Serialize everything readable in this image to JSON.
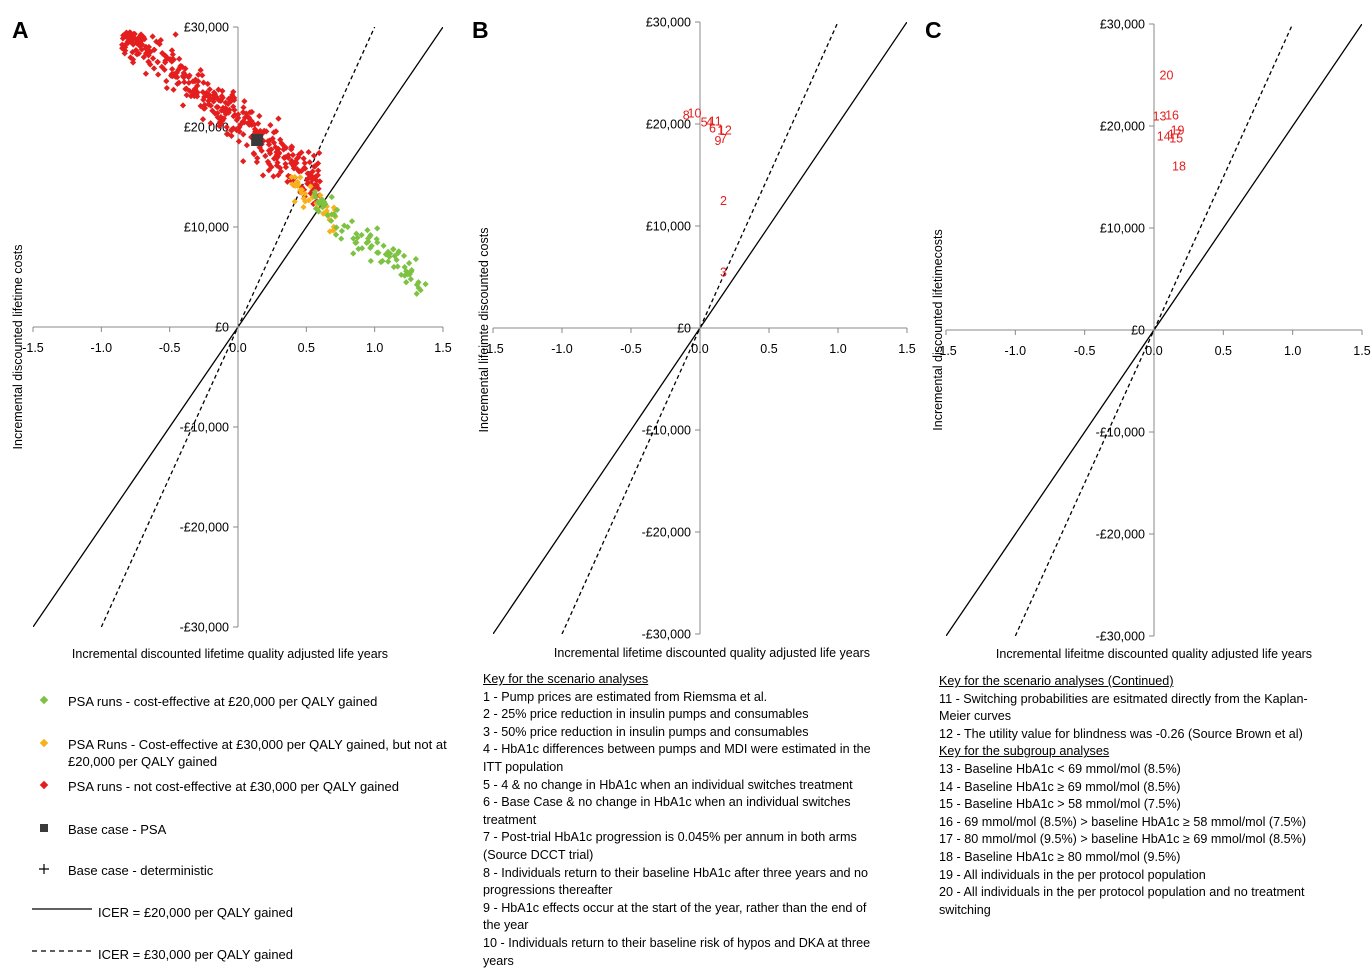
{
  "panels": [
    {
      "letter": "A",
      "xlabel": "Incremental discounted lifetime quality adjusted life years",
      "ylabel": "Incremental discounted lifetime costs"
    },
    {
      "letter": "B",
      "xlabel": "Incremental lifetime discounted quality adjusted life years",
      "ylabel": "Incremental lifeimte discounted costs"
    },
    {
      "letter": "C",
      "xlabel": "Incremental lifeitme discounted quality adjusted life years",
      "ylabel": "Incremental discounted lifetimecosts"
    }
  ],
  "legend": {
    "green": "PSA runs - cost-effective at £20,000 per QALY gained",
    "orange": "PSA Runs - Cost-effective at £30,000 per QALY gained, but not at £20,000 per QALY gained",
    "red": "PSA runs - not cost-effective at £30,000 per QALY gained",
    "base_psa": "Base case - PSA",
    "base_det": "Base case - deterministic",
    "icer20": "ICER = £20,000 per QALY gained",
    "icer30": "ICER = £30,000 per QALY gained",
    "colors": {
      "green": "#7dc242",
      "orange": "#f5b21b",
      "red": "#e41e1e",
      "base": "#3a3a3a"
    }
  },
  "key_b": {
    "heading": "Key for the scenario analyses",
    "items": [
      "1 - Pump prices are estimated from Riemsma et al.",
      "2 - 25% price reduction in insulin pumps and consumables",
      "3 - 50% price reduction in insulin pumps and consumables",
      "4 - HbA1c differences between pumps and MDI were estimated in the",
      "ITT population",
      "5 - 4 & no change in HbA1c when an individual switches treatment",
      "6 - Base Case & no change in HbA1c when an individual switches",
      "treatment",
      "7 - Post-trial HbA1c progression is 0.045% per annum in both arms",
      "(Source DCCT trial)",
      "8 - Individuals return to their baseline HbA1c after three years and no",
      "progressions thereafter",
      "9 - HbA1c effects occur at the start of the year, rather than the end of",
      "the year",
      "10 - Individuals return to their baseline risk of hypos and DKA at three",
      "years"
    ]
  },
  "key_c": {
    "heading1": "Key for the scenario analyses (Continued)",
    "items1": [
      "11 - Switching probabilities are esitmated directly from the Kaplan-",
      "Meier curves",
      "12 - The utility value for blindness was -0.26 (Source Brown et al)"
    ],
    "heading2": "Key for the subgroup analyses",
    "items2": [
      "13 - Baseline HbA1c < 69 mmol/mol (8.5%)",
      "14 - Baseline HbA1c ≥ 69 mmol/mol (8.5%)",
      "15 - Baseline HbA1c > 58 mmol/mol (7.5%)",
      "16 - 69 mmol/mol (8.5%) > baseline HbA1c ≥ 58 mmol/mol (7.5%)",
      "17 - 80 mmol/mol (9.5%) > baseline HbA1c ≥ 69 mmol/mol (8.5%)",
      "18 - Baseline HbA1c ≥ 80 mmol/mol (9.5%)",
      "19 - All individuals in the per protocol population",
      "20 - All individuals in the per protocol population and no treatment",
      "switching"
    ]
  },
  "chart_data": [
    {
      "type": "scatter",
      "panel": "A",
      "xlabel": "Incremental discounted lifetime quality adjusted life years",
      "ylabel": "Incremental discounted lifetime costs",
      "xlim": [
        -1.5,
        1.5
      ],
      "ylim": [
        -30000,
        30000
      ],
      "xticks": [
        "-1.5",
        "-1.0",
        "-0.5",
        "0.0",
        "0.5",
        "1.0",
        "1.5"
      ],
      "yticks": [
        "-£30,000",
        "-£20,000",
        "-£10,000",
        "£0",
        "£10,000",
        "£20,000",
        "£30,000"
      ],
      "series": [
        {
          "name": "PSA runs - not cost-effective at £30,000 per QALY gained",
          "color": "#e41e1e",
          "cloud": {
            "n": 420,
            "x_range": [
              -0.85,
              0.6
            ],
            "y_center_at_x0": 20500,
            "slope": -11000,
            "spread": 3200
          }
        },
        {
          "name": "PSA Runs - Cost-effective at £30,000 per QALY gained, but not at £20,000 per QALY gained",
          "color": "#f5b21b",
          "cloud": {
            "n": 40,
            "x_range": [
              0.38,
              0.72
            ],
            "y_center_at_x0": 19000,
            "slope": -11500,
            "spread": 2000
          }
        },
        {
          "name": "PSA runs - cost-effective at £20,000 per QALY gained",
          "color": "#7dc242",
          "cloud": {
            "n": 85,
            "x_range": [
              0.52,
              1.38
            ],
            "y_center_at_x0": 18500,
            "slope": -10500,
            "spread": 2300
          }
        }
      ],
      "base_case_psa": {
        "x": 0.14,
        "y": 18700
      },
      "icer_lines": [
        {
          "slope": 20000,
          "style": "solid"
        },
        {
          "slope": 30000,
          "style": "dashed"
        }
      ]
    },
    {
      "type": "scatter",
      "panel": "B",
      "xlabel": "Incremental lifetime discounted quality adjusted life years",
      "ylabel": "Incremental lifeimte discounted costs",
      "xlim": [
        -1.5,
        1.5
      ],
      "ylim": [
        -30000,
        30000
      ],
      "xticks": [
        "-1.5",
        "-1.0",
        "-0.5",
        "0.0",
        "0.5",
        "1.0",
        "1.5"
      ],
      "yticks": [
        "-£30,000",
        "-£20,000",
        "-£10,000",
        "£0",
        "£10,000",
        "£20,000",
        "£30,000"
      ],
      "labels": [
        {
          "text": "8",
          "x": -0.1,
          "y": 20900
        },
        {
          "text": "10",
          "x": -0.04,
          "y": 21100
        },
        {
          "text": "5",
          "x": 0.03,
          "y": 20200
        },
        {
          "text": "4",
          "x": 0.07,
          "y": 20200
        },
        {
          "text": "11",
          "x": 0.11,
          "y": 20300
        },
        {
          "text": "6",
          "x": 0.09,
          "y": 19600
        },
        {
          "text": "1",
          "x": 0.15,
          "y": 19400
        },
        {
          "text": "12",
          "x": 0.18,
          "y": 19400
        },
        {
          "text": "9",
          "x": 0.13,
          "y": 18400
        },
        {
          "text": "7",
          "x": 0.17,
          "y": 18600
        },
        {
          "text": "2",
          "x": 0.17,
          "y": 12500
        },
        {
          "text": "3",
          "x": 0.17,
          "y": 5500
        }
      ],
      "icer_lines": [
        {
          "slope": 20000,
          "style": "solid"
        },
        {
          "slope": 30000,
          "style": "dashed"
        }
      ]
    },
    {
      "type": "scatter",
      "panel": "C",
      "xlabel": "Incremental lifeitme discounted quality adjusted life years",
      "ylabel": "Incremental discounted lifetimecosts",
      "xlim": [
        -1.5,
        1.5
      ],
      "ylim": [
        -30000,
        30000
      ],
      "xticks": [
        "-1.5",
        "-1.0",
        "-0.5",
        "0.0",
        "0.5",
        "1.0",
        "1.5"
      ],
      "yticks": [
        "-£30,000",
        "-£20,000",
        "-£10,000",
        "£0",
        "£10,000",
        "£20,000",
        "£30,000"
      ],
      "labels": [
        {
          "text": "20",
          "x": 0.09,
          "y": 25000
        },
        {
          "text": "13",
          "x": 0.04,
          "y": 21000
        },
        {
          "text": "16",
          "x": 0.13,
          "y": 21100
        },
        {
          "text": "19",
          "x": 0.17,
          "y": 19600
        },
        {
          "text": "14",
          "x": 0.07,
          "y": 19000
        },
        {
          "text": "17",
          "x": 0.15,
          "y": 19200
        },
        {
          "text": "15",
          "x": 0.16,
          "y": 18800
        },
        {
          "text": "18",
          "x": 0.18,
          "y": 16100
        }
      ],
      "icer_lines": [
        {
          "slope": 20000,
          "style": "solid"
        },
        {
          "slope": 30000,
          "style": "dashed"
        }
      ]
    }
  ]
}
